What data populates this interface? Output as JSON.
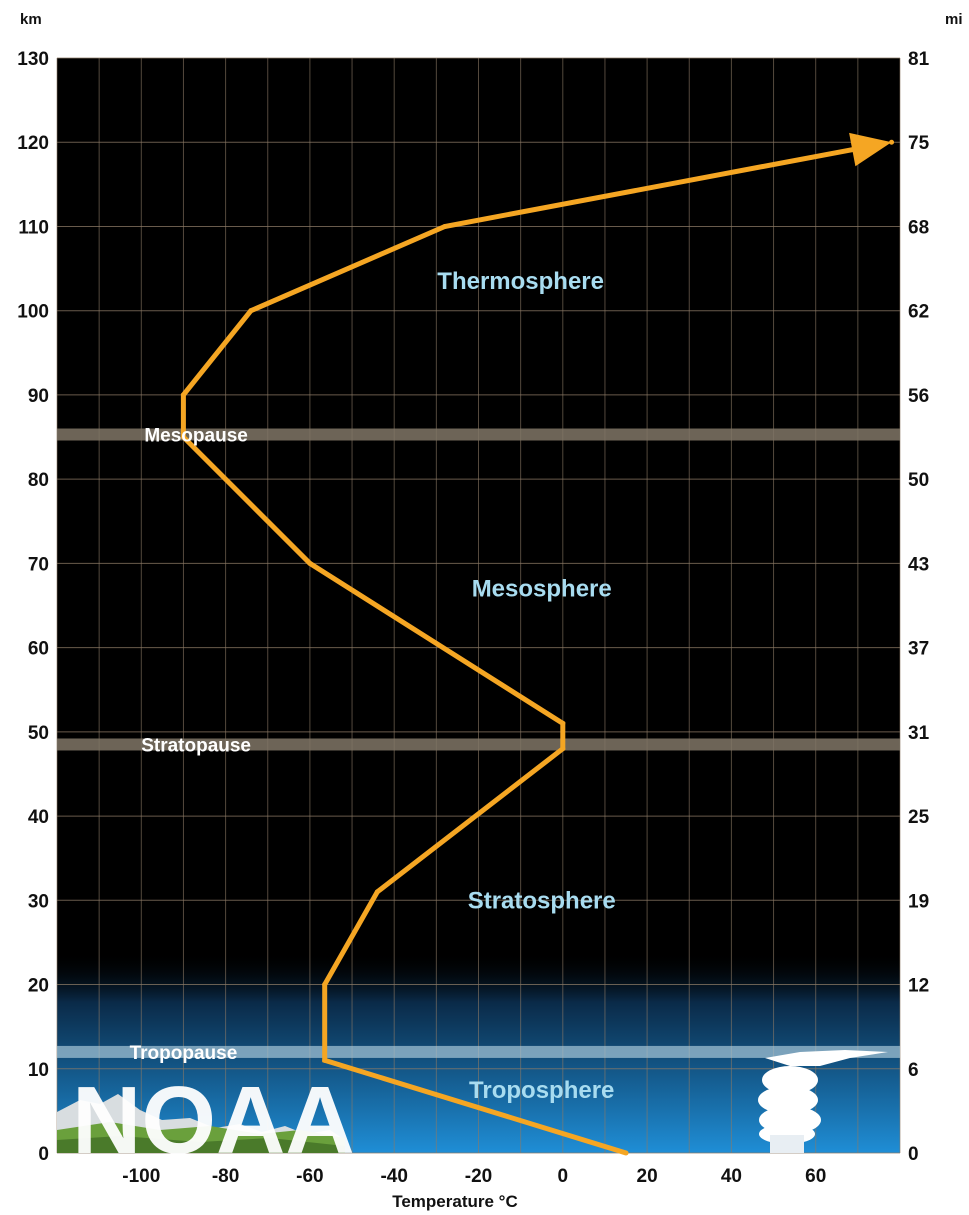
{
  "chart_data": {
    "type": "line",
    "ylabel_left": "km",
    "ylabel_right": "mi",
    "xlabel": "Temperature  °C",
    "ylim": [
      0,
      130
    ],
    "xlim": [
      -120,
      80
    ],
    "grid": true,
    "y_ticks_km": [
      0,
      10,
      20,
      30,
      40,
      50,
      60,
      70,
      80,
      90,
      100,
      110,
      120,
      130
    ],
    "y_ticks_km_labels": [
      "0",
      "10",
      "20",
      "30",
      "40",
      "50",
      "60",
      "70",
      "80",
      "90",
      "100",
      "110",
      "120",
      "130"
    ],
    "y_ticks_mi_labels": [
      "0",
      "6",
      "12",
      "19",
      "25",
      "31",
      "37",
      "43",
      "50",
      "56",
      "62",
      "68",
      "75",
      "81"
    ],
    "x_ticks": [
      -100,
      -80,
      -60,
      -40,
      -20,
      0,
      20,
      40,
      60
    ],
    "x_tick_labels": [
      "-100",
      "-80",
      "-60",
      "-40",
      "-20",
      "0",
      "20",
      "40",
      "60"
    ],
    "series": [
      {
        "color": "#f5a623",
        "points": [
          {
            "temp": 15,
            "alt": 0
          },
          {
            "temp": -56.5,
            "alt": 11
          },
          {
            "temp": -56.5,
            "alt": 20
          },
          {
            "temp": -44,
            "alt": 31
          },
          {
            "temp": 0,
            "alt": 48
          },
          {
            "temp": 0,
            "alt": 51
          },
          {
            "temp": -60,
            "alt": 70
          },
          {
            "temp": -90,
            "alt": 85
          },
          {
            "temp": -90,
            "alt": 90
          },
          {
            "temp": -74,
            "alt": 100
          },
          {
            "temp": -28,
            "alt": 110
          },
          {
            "temp": 78,
            "alt": 120
          }
        ],
        "arrow_end": true
      }
    ],
    "boundaries": [
      {
        "label": "Tropopause",
        "alt": 12,
        "label_temp": -90
      },
      {
        "label": "Stratopause",
        "alt": 48.5,
        "label_temp": -87
      },
      {
        "label": "Mesopause",
        "alt": 85.3,
        "label_temp": -87
      }
    ],
    "layers": [
      {
        "label": "Troposphere",
        "alt": 7.5,
        "temp": -5
      },
      {
        "label": "Stratosphere",
        "alt": 30,
        "temp": -5
      },
      {
        "label": "Mesosphere",
        "alt": 67,
        "temp": -5
      },
      {
        "label": "Thermosphere",
        "alt": 103.5,
        "temp": -10
      }
    ],
    "colors": {
      "background": "#000000",
      "grid": "#8c7a66",
      "boundary_band": "#807566",
      "tropo_band": "#a8c8d8",
      "sky_top": "#0a2a48",
      "sky_bottom": "#1f8ed6",
      "layer_text": "#a8dcf0",
      "pause_text": "#ffffff",
      "curve": "#f5a623"
    },
    "watermark": "NOAA"
  }
}
